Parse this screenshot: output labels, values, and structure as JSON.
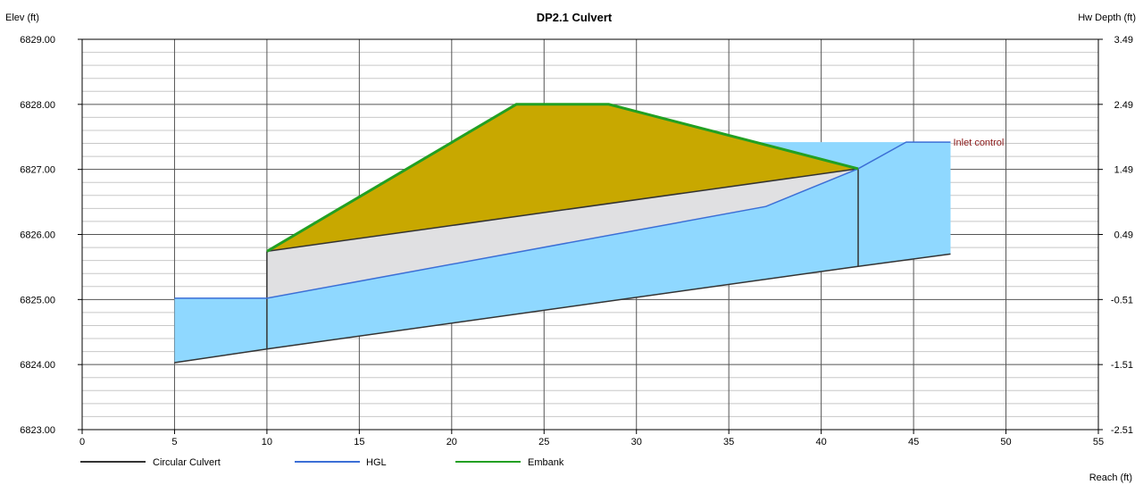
{
  "chart_data": {
    "type": "line",
    "title": "DP2.1 Culvert",
    "ylabel_left": "Elev (ft)",
    "ylabel_right": "Hw Depth (ft)",
    "xlabel": "Reach (ft)",
    "xlim": [
      0,
      55
    ],
    "ylim": [
      6823,
      6829
    ],
    "x_ticks": [
      "0",
      "5",
      "10",
      "15",
      "20",
      "25",
      "30",
      "35",
      "40",
      "45",
      "50",
      "55"
    ],
    "y_ticks_left": [
      "6823.00",
      "6824.00",
      "6825.00",
      "6826.00",
      "6827.00",
      "6828.00",
      "6829.00"
    ],
    "y_ticks_right": [
      "-2.51",
      "-1.51",
      "-0.51",
      "0.49",
      "1.49",
      "2.49",
      "3.49"
    ],
    "grid": true,
    "annotation": {
      "text": "Inlet control",
      "x": 47,
      "y": 6827.42,
      "color": "#8b1a1a"
    },
    "water_fill_color": "#8fd8ff",
    "culvert_fill_color": "#e0e0e2",
    "embankment_fill_color": "#c8a800",
    "series": [
      {
        "name": "Circular Culvert",
        "color": "#333333",
        "invert": {
          "x": [
            5,
            10,
            42,
            47
          ],
          "y": [
            6824.03,
            6824.24,
            6825.51,
            6825.7
          ]
        },
        "crown": {
          "x": [
            10,
            42
          ],
          "y": [
            6825.74,
            6827.01
          ]
        }
      },
      {
        "name": "HGL",
        "color": "#3c6fd6",
        "x": [
          5,
          10,
          37,
          42,
          44.6,
          47
        ],
        "y": [
          6825.02,
          6825.02,
          6826.43,
          6827.01,
          6827.42,
          6827.42
        ]
      },
      {
        "name": "Embank",
        "color": "#22a022",
        "x": [
          10,
          23.5,
          28.5,
          42
        ],
        "y": [
          6825.74,
          6828.0,
          6828.0,
          6827.01
        ]
      }
    ]
  }
}
